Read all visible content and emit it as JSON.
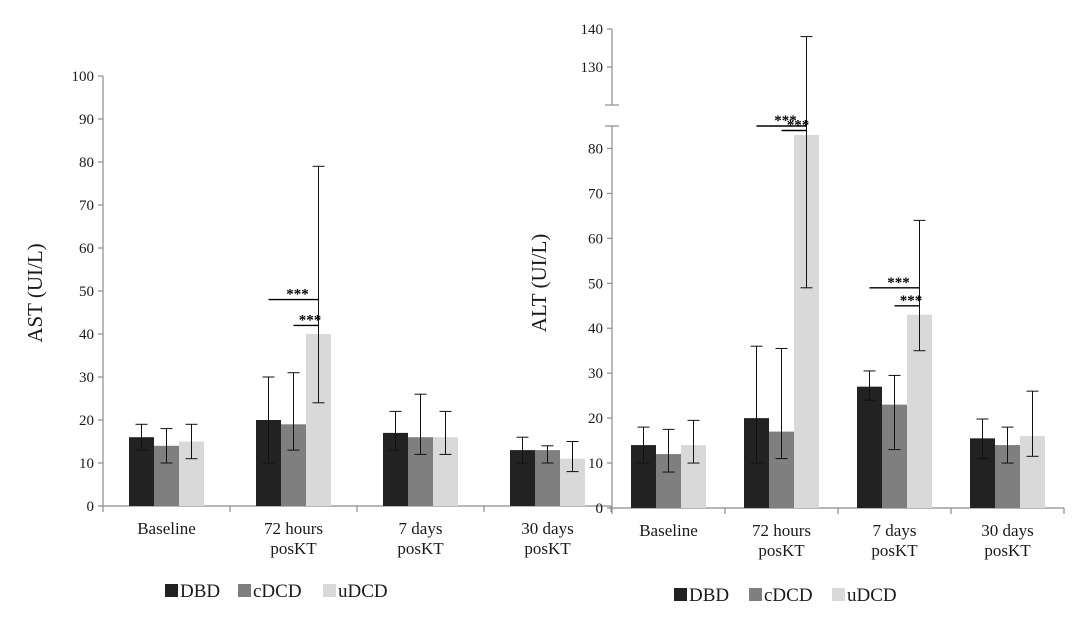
{
  "chart_data": [
    {
      "type": "bar",
      "ylabel": "AST (UI/L)",
      "ylim": [
        0,
        100
      ],
      "yticks": [
        "0",
        "10",
        "20",
        "30",
        "40",
        "50",
        "60",
        "70",
        "80",
        "90",
        "100"
      ],
      "categories": [
        [
          "Baseline"
        ],
        [
          "72 hours",
          "posKT"
        ],
        [
          "7 days",
          "posKT"
        ],
        [
          "30 days",
          "posKT"
        ]
      ],
      "series": [
        {
          "name": "DBD",
          "color": "#222222",
          "values": [
            16,
            20,
            17,
            13
          ],
          "err_low": [
            13,
            10,
            13,
            10
          ],
          "err_high": [
            19,
            30,
            22,
            16
          ]
        },
        {
          "name": "cDCD",
          "color": "#7f7f7f",
          "values": [
            14,
            19,
            16,
            13
          ],
          "err_low": [
            10,
            13,
            12,
            10
          ],
          "err_high": [
            18,
            31,
            26,
            14
          ]
        },
        {
          "name": "uDCD",
          "color": "#d9d9d9",
          "values": [
            15,
            40,
            16,
            11
          ],
          "err_low": [
            11,
            24,
            12,
            8
          ],
          "err_high": [
            19,
            79,
            22,
            15
          ]
        }
      ],
      "annotations": [
        {
          "text": "***",
          "category": 1,
          "from": "DBD",
          "to": "uDCD",
          "level": 48
        },
        {
          "text": "***",
          "category": 1,
          "from": "cDCD",
          "to": "uDCD",
          "level": 42
        }
      ],
      "legend": [
        "DBD",
        "cDCD",
        "uDCD"
      ]
    },
    {
      "type": "bar",
      "ylabel": "ALT (UI/L)",
      "ylim": [
        0,
        140
      ],
      "axis_break": [
        85,
        120
      ],
      "yticks": [
        "0",
        "10",
        "20",
        "30",
        "40",
        "50",
        "60",
        "70",
        "80",
        "130",
        "140"
      ],
      "categories": [
        [
          "Baseline"
        ],
        [
          "72 hours",
          "posKT"
        ],
        [
          "7 days",
          "posKT"
        ],
        [
          "30 days",
          "posKT"
        ]
      ],
      "series": [
        {
          "name": "DBD",
          "color": "#222222",
          "values": [
            14,
            20,
            27,
            15.5
          ],
          "err_low": [
            10,
            10,
            24,
            11
          ],
          "err_high": [
            18,
            36,
            30.5,
            19.8
          ]
        },
        {
          "name": "cDCD",
          "color": "#7f7f7f",
          "values": [
            12,
            17,
            23,
            14
          ],
          "err_low": [
            8,
            11,
            13,
            10
          ],
          "err_high": [
            17.5,
            35.5,
            29.5,
            18
          ]
        },
        {
          "name": "uDCD",
          "color": "#d9d9d9",
          "values": [
            14,
            83,
            43,
            16
          ],
          "err_low": [
            10,
            49,
            35,
            11.5
          ],
          "err_high": [
            19.5,
            138,
            64,
            26
          ]
        }
      ],
      "annotations": [
        {
          "text": "***",
          "category": 1,
          "from": "DBD",
          "to": "uDCD",
          "level": 88
        },
        {
          "text": "***",
          "category": 1,
          "from": "cDCD",
          "to": "uDCD",
          "level": 84
        },
        {
          "text": "***",
          "category": 2,
          "from": "DBD",
          "to": "uDCD",
          "level": 49
        },
        {
          "text": "***",
          "category": 2,
          "from": "cDCD",
          "to": "uDCD",
          "level": 45
        }
      ],
      "legend": [
        "DBD",
        "cDCD",
        "uDCD"
      ]
    }
  ]
}
